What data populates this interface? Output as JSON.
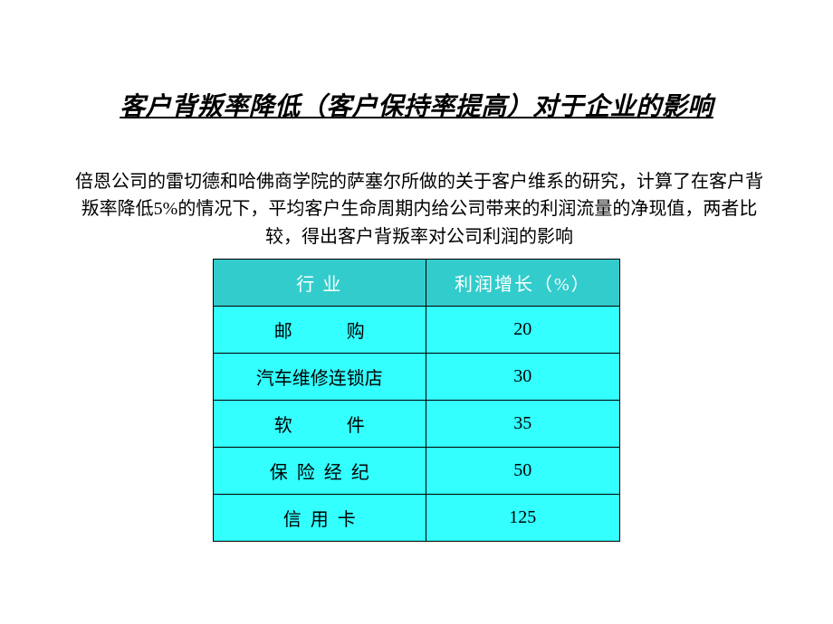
{
  "title": "客户背叛率降低（客户保持率提高）对于企业的影响",
  "paragraph": "倍恩公司的雷切德和哈佛商学院的萨塞尔所做的关于客户维系的研究，计算了在客户背叛率降低5%的情况下，平均客户生命周期内给公司带来的利润流量的净现值，两者比较，得出客户背叛率对公司利润的影响",
  "table": {
    "header_bg": "#33cccc",
    "header_fg": "#ffffff",
    "cell_bg": "#33ffff",
    "cell_fg": "#000000",
    "columns": [
      "行  业",
      "利润增长（%）"
    ],
    "rows": [
      {
        "industry": "邮            购",
        "value": "20"
      },
      {
        "industry": "汽车维修连锁店",
        "value": "30"
      },
      {
        "industry": "软            件",
        "value": "35"
      },
      {
        "industry": "保  险  经  纪",
        "value": "50"
      },
      {
        "industry": "信  用  卡",
        "value": "125"
      }
    ]
  }
}
